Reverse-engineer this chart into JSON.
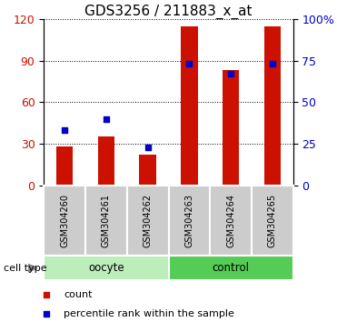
{
  "title": "GDS3256 / 211883_x_at",
  "samples": [
    "GSM304260",
    "GSM304261",
    "GSM304262",
    "GSM304263",
    "GSM304264",
    "GSM304265"
  ],
  "counts": [
    28,
    35,
    22,
    115,
    83,
    115
  ],
  "percentiles": [
    33,
    40,
    23,
    73,
    67,
    73
  ],
  "ylim_left": [
    0,
    120
  ],
  "ylim_right": [
    0,
    100
  ],
  "yticks_left": [
    0,
    30,
    60,
    90,
    120
  ],
  "yticks_right": [
    0,
    25,
    50,
    75,
    100
  ],
  "yticklabels_right": [
    "0",
    "25",
    "50",
    "75",
    "100%"
  ],
  "bar_color": "#cc1100",
  "dot_color": "#0000cc",
  "grid_color": "#000000",
  "groups": [
    {
      "label": "oocyte",
      "start": 0,
      "end": 3,
      "color": "#bbeebb"
    },
    {
      "label": "control",
      "start": 3,
      "end": 6,
      "color": "#55cc55"
    }
  ],
  "cell_type_label": "cell type",
  "legend_count_label": "count",
  "legend_pct_label": "percentile rank within the sample",
  "title_fontsize": 11,
  "tick_fontsize": 9,
  "sample_label_fontsize": 7,
  "group_label_fontsize": 8.5,
  "bar_width": 0.4
}
